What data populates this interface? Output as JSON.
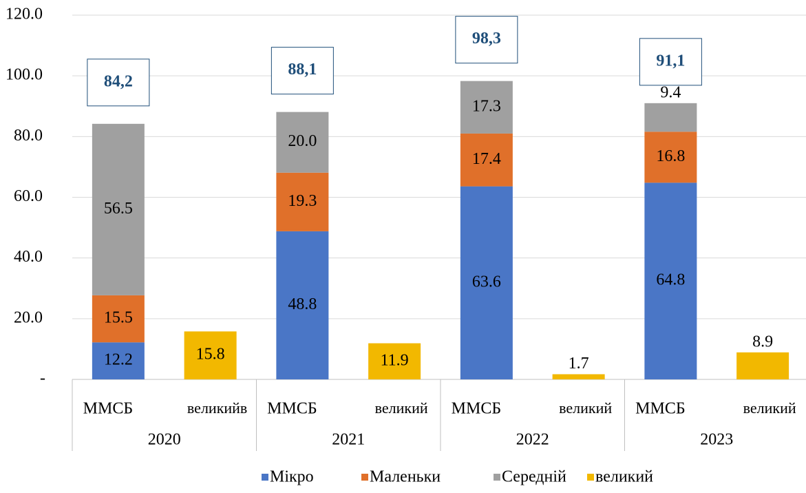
{
  "chart_data": {
    "type": "stacked_bar",
    "categories": [
      "ММСБ",
      "великийв",
      "ММСБ",
      "великий",
      "ММСБ",
      "великий",
      "ММСБ",
      "великий"
    ],
    "groups": [
      "2020",
      "2021",
      "2022",
      "2023"
    ],
    "series": [
      {
        "name": "Мікро",
        "color": "#4a76c6",
        "values": [
          12.2,
          null,
          48.8,
          null,
          63.6,
          null,
          64.8,
          null
        ],
        "value_labels": [
          "12.2",
          null,
          "48.8",
          null,
          "63.6",
          null,
          "64.8",
          null
        ]
      },
      {
        "name": "Маленьки",
        "color": "#e0702a",
        "values": [
          15.5,
          null,
          19.3,
          null,
          17.4,
          null,
          16.8,
          null
        ],
        "value_labels": [
          "15.5",
          null,
          "19.3",
          null,
          "17.4",
          null,
          "16.8",
          null
        ]
      },
      {
        "name": "Середній",
        "color": "#a0a0a0",
        "values": [
          56.5,
          null,
          20.0,
          null,
          17.3,
          null,
          9.4,
          null
        ],
        "value_labels": [
          "56.5",
          null,
          "20.0",
          null,
          "17.3",
          null,
          "9.4",
          null
        ]
      },
      {
        "name": "великий",
        "color": "#f2b800",
        "values": [
          null,
          15.8,
          null,
          11.9,
          null,
          1.7,
          null,
          8.9
        ],
        "value_labels": [
          null,
          "15.8",
          null,
          "11.9",
          null,
          "1.7",
          null,
          "8.9"
        ]
      }
    ],
    "total_labels": [
      "84,2",
      null,
      "88,1",
      null,
      "98,3",
      null,
      "91,1",
      null
    ],
    "ylim": [
      0,
      120
    ],
    "yticks": [
      {
        "value": 0,
        "label": "-"
      },
      {
        "value": 20,
        "label": "20.0"
      },
      {
        "value": 40,
        "label": "40.0"
      },
      {
        "value": 60,
        "label": "60.0"
      },
      {
        "value": 80,
        "label": "80.0"
      },
      {
        "value": 100,
        "label": "100.0"
      },
      {
        "value": 120,
        "label": "120.0"
      }
    ],
    "grid": true,
    "legend": "bottom"
  }
}
